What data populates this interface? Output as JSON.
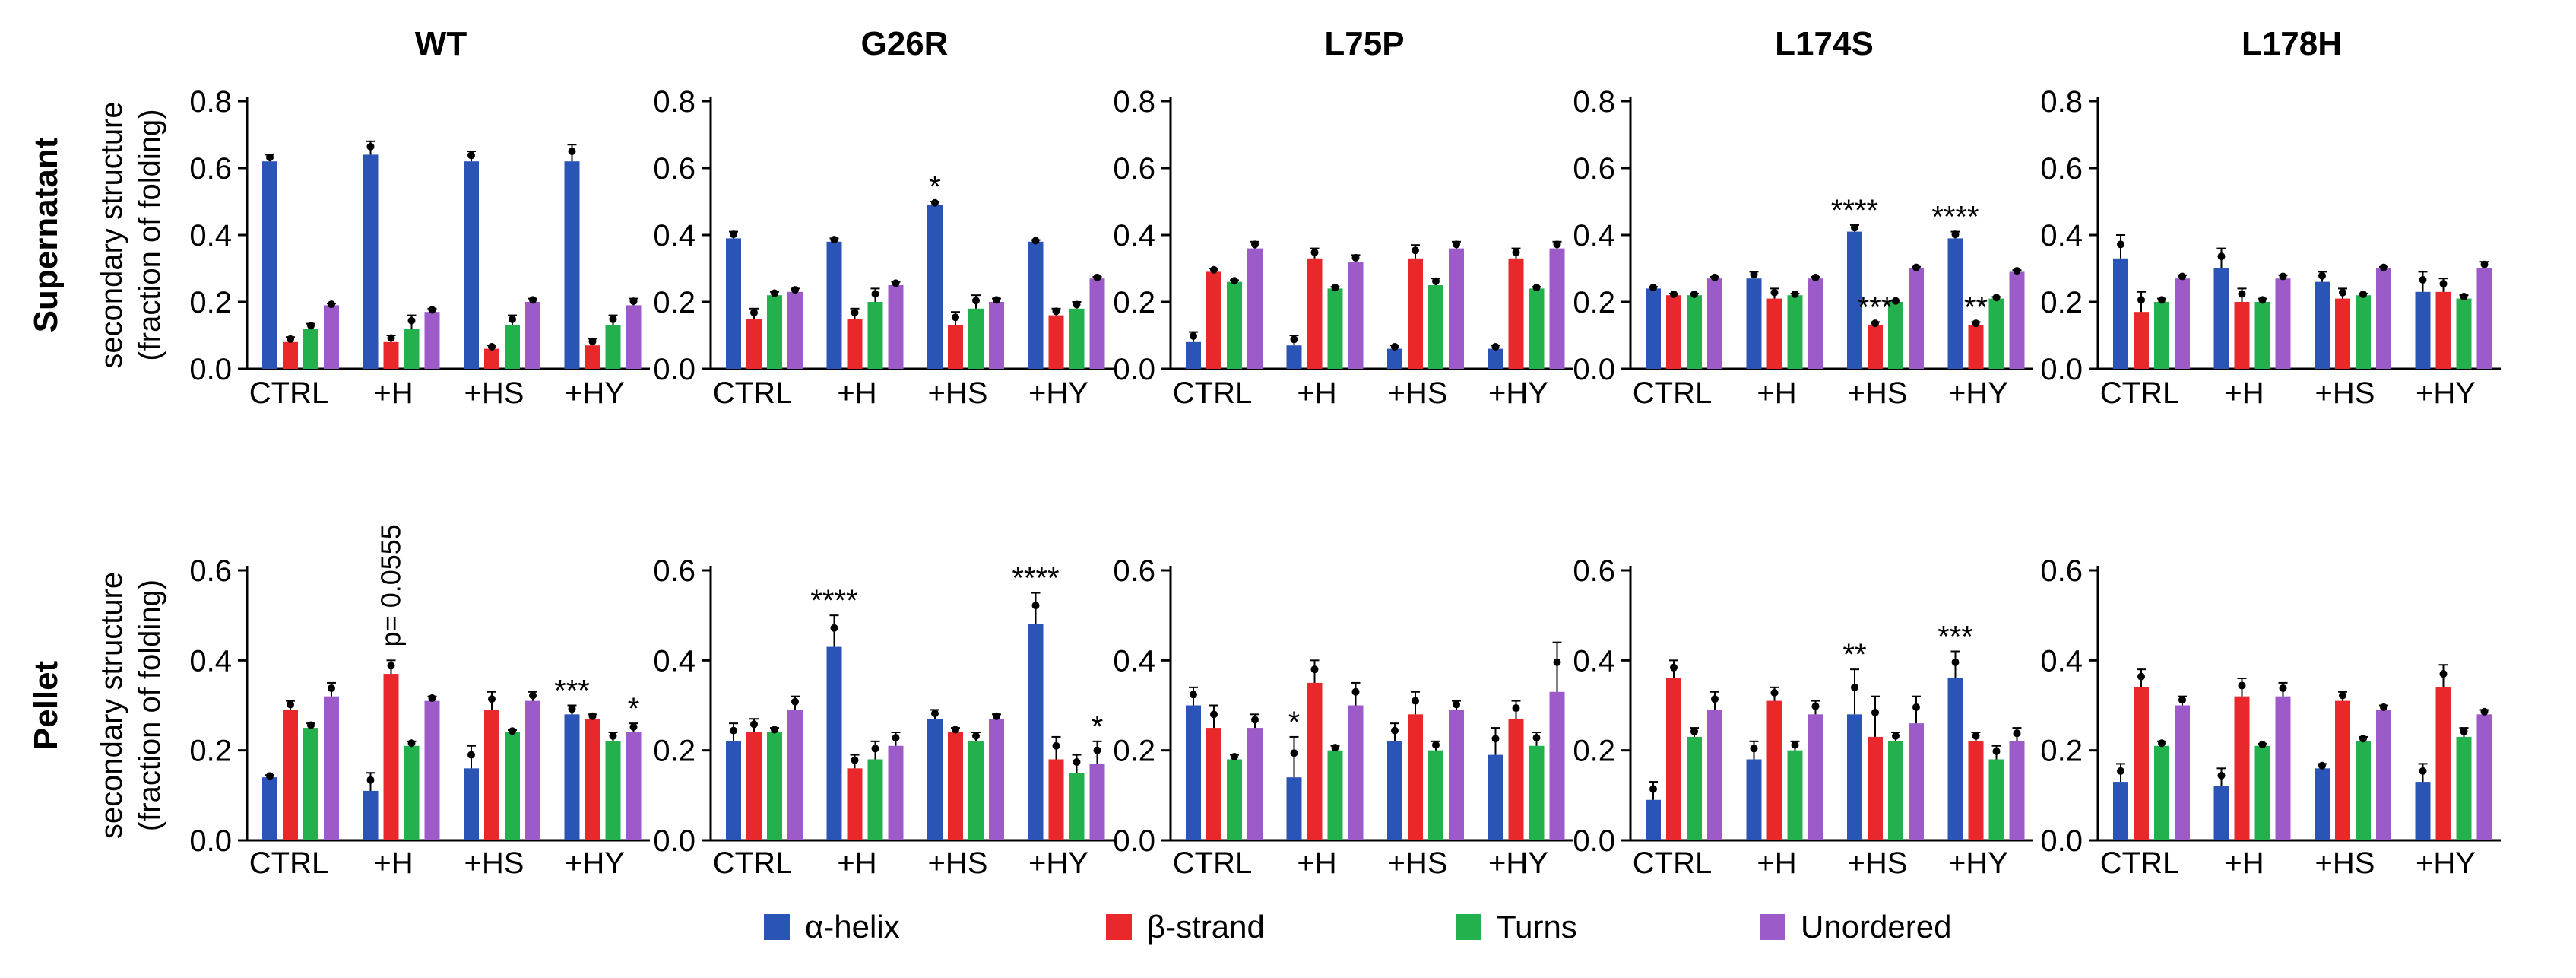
{
  "colors": {
    "alpha_helix": "#2a55b6",
    "beta_strand": "#e8282b",
    "turns": "#23b14d",
    "unordered": "#9c5bc8"
  },
  "row_labels": [
    "Supernatant",
    "Pellet"
  ],
  "legend": [
    {
      "label": "α-helix",
      "color": "#2a55b6"
    },
    {
      "label": "β-strand",
      "color": "#e8282b"
    },
    {
      "label": "Turns",
      "color": "#23b14d"
    },
    {
      "label": "Unordered",
      "color": "#9c5bc8"
    }
  ],
  "chart_data": [
    {
      "type": "bar",
      "title": "WT",
      "row": "Supernatant",
      "ylabel": "secondary structure\n(fraction of folding)",
      "categories": [
        "CTRL",
        "+H",
        "+HS",
        "+HY"
      ],
      "ylim": [
        0,
        0.8
      ],
      "yticks": [
        0.0,
        0.2,
        0.4,
        0.6,
        0.8
      ],
      "series": [
        {
          "name": "α-helix",
          "values": [
            0.62,
            0.64,
            0.62,
            0.62
          ],
          "errors": [
            0.02,
            0.04,
            0.03,
            0.05
          ]
        },
        {
          "name": "β-strand",
          "values": [
            0.08,
            0.08,
            0.06,
            0.07
          ],
          "errors": [
            0.015,
            0.02,
            0.01,
            0.02
          ]
        },
        {
          "name": "Turns",
          "values": [
            0.12,
            0.12,
            0.13,
            0.13
          ],
          "errors": [
            0.015,
            0.04,
            0.03,
            0.03
          ]
        },
        {
          "name": "Unordered",
          "values": [
            0.19,
            0.17,
            0.2,
            0.19
          ],
          "errors": [
            0.005,
            0.01,
            0.01,
            0.02
          ]
        }
      ],
      "annotations": []
    },
    {
      "type": "bar",
      "title": "G26R",
      "row": "Supernatant",
      "categories": [
        "CTRL",
        "+H",
        "+HS",
        "+HY"
      ],
      "ylim": [
        0,
        0.8
      ],
      "yticks": [
        0.0,
        0.2,
        0.4,
        0.6,
        0.8
      ],
      "series": [
        {
          "name": "α-helix",
          "values": [
            0.39,
            0.38,
            0.49,
            0.38
          ],
          "errors": [
            0.02,
            0.01,
            0.01,
            0.005
          ]
        },
        {
          "name": "β-strand",
          "values": [
            0.15,
            0.15,
            0.13,
            0.16
          ],
          "errors": [
            0.03,
            0.03,
            0.04,
            0.02
          ]
        },
        {
          "name": "Turns",
          "values": [
            0.22,
            0.2,
            0.18,
            0.18
          ],
          "errors": [
            0.01,
            0.04,
            0.04,
            0.02
          ]
        },
        {
          "name": "Unordered",
          "values": [
            0.23,
            0.25,
            0.2,
            0.27
          ],
          "errors": [
            0.01,
            0.01,
            0.01,
            0.005
          ]
        }
      ],
      "annotations": [
        {
          "group": 2,
          "series": 0,
          "text": "*"
        }
      ]
    },
    {
      "type": "bar",
      "title": "L75P",
      "row": "Supernatant",
      "categories": [
        "CTRL",
        "+H",
        "+HS",
        "+HY"
      ],
      "ylim": [
        0,
        0.8
      ],
      "yticks": [
        0.0,
        0.2,
        0.4,
        0.6,
        0.8
      ],
      "series": [
        {
          "name": "α-helix",
          "values": [
            0.08,
            0.07,
            0.06,
            0.06
          ],
          "errors": [
            0.03,
            0.03,
            0.01,
            0.01
          ]
        },
        {
          "name": "β-strand",
          "values": [
            0.29,
            0.33,
            0.33,
            0.33
          ],
          "errors": [
            0.01,
            0.03,
            0.04,
            0.03
          ]
        },
        {
          "name": "Turns",
          "values": [
            0.26,
            0.24,
            0.25,
            0.24
          ],
          "errors": [
            0.005,
            0.005,
            0.02,
            0.005
          ]
        },
        {
          "name": "Unordered",
          "values": [
            0.36,
            0.32,
            0.36,
            0.36
          ],
          "errors": [
            0.02,
            0.02,
            0.02,
            0.02
          ]
        }
      ],
      "annotations": []
    },
    {
      "type": "bar",
      "title": "L174S",
      "row": "Supernatant",
      "categories": [
        "CTRL",
        "+H",
        "+HS",
        "+HY"
      ],
      "ylim": [
        0,
        0.8
      ],
      "yticks": [
        0.0,
        0.2,
        0.4,
        0.6,
        0.8
      ],
      "series": [
        {
          "name": "α-helix",
          "values": [
            0.24,
            0.27,
            0.41,
            0.39
          ],
          "errors": [
            0.005,
            0.02,
            0.02,
            0.02
          ]
        },
        {
          "name": "β-strand",
          "values": [
            0.22,
            0.21,
            0.13,
            0.13
          ],
          "errors": [
            0.005,
            0.03,
            0.01,
            0.01
          ]
        },
        {
          "name": "Turns",
          "values": [
            0.22,
            0.22,
            0.2,
            0.21
          ],
          "errors": [
            0.005,
            0.005,
            0.005,
            0.005
          ]
        },
        {
          "name": "Unordered",
          "values": [
            0.27,
            0.27,
            0.3,
            0.29
          ],
          "errors": [
            0.005,
            0.005,
            0.005,
            0.005
          ]
        }
      ],
      "annotations": [
        {
          "group": 2,
          "series": 0,
          "text": "****"
        },
        {
          "group": 2,
          "series": 1,
          "text": "***"
        },
        {
          "group": 3,
          "series": 0,
          "text": "****"
        },
        {
          "group": 3,
          "series": 1,
          "text": "**"
        }
      ]
    },
    {
      "type": "bar",
      "title": "L178H",
      "row": "Supernatant",
      "categories": [
        "CTRL",
        "+H",
        "+HS",
        "+HY"
      ],
      "ylim": [
        0,
        0.8
      ],
      "yticks": [
        0.0,
        0.2,
        0.4,
        0.6,
        0.8
      ],
      "series": [
        {
          "name": "α-helix",
          "values": [
            0.33,
            0.3,
            0.26,
            0.23
          ],
          "errors": [
            0.07,
            0.06,
            0.03,
            0.06
          ]
        },
        {
          "name": "β-strand",
          "values": [
            0.17,
            0.2,
            0.21,
            0.23
          ],
          "errors": [
            0.06,
            0.04,
            0.03,
            0.04
          ]
        },
        {
          "name": "Turns",
          "values": [
            0.2,
            0.2,
            0.22,
            0.21
          ],
          "errors": [
            0.01,
            0.01,
            0.005,
            0.01
          ]
        },
        {
          "name": "Unordered",
          "values": [
            0.27,
            0.27,
            0.3,
            0.3
          ],
          "errors": [
            0.01,
            0.01,
            0.005,
            0.02
          ]
        }
      ],
      "annotations": []
    },
    {
      "type": "bar",
      "title": "",
      "row": "Pellet",
      "ylabel": "secondary structure\n(fraction of folding)",
      "categories": [
        "CTRL",
        "+H",
        "+HS",
        "+HY"
      ],
      "ylim": [
        0,
        0.6
      ],
      "yticks": [
        0.0,
        0.2,
        0.4,
        0.6
      ],
      "series": [
        {
          "name": "α-helix",
          "values": [
            0.14,
            0.11,
            0.16,
            0.28
          ],
          "errors": [
            0.005,
            0.04,
            0.05,
            0.02
          ]
        },
        {
          "name": "β-strand",
          "values": [
            0.29,
            0.37,
            0.29,
            0.27
          ],
          "errors": [
            0.02,
            0.03,
            0.04,
            0.01
          ]
        },
        {
          "name": "Turns",
          "values": [
            0.25,
            0.21,
            0.24,
            0.22
          ],
          "errors": [
            0.01,
            0.01,
            0.005,
            0.02
          ]
        },
        {
          "name": "Unordered",
          "values": [
            0.32,
            0.31,
            0.31,
            0.24
          ],
          "errors": [
            0.03,
            0.01,
            0.02,
            0.02
          ]
        }
      ],
      "annotations": [
        {
          "group": 1,
          "series": 1,
          "text": "p= 0.0555",
          "rotate": true
        },
        {
          "group": 3,
          "series": 0,
          "text": "***"
        },
        {
          "group": 3,
          "series": 3,
          "text": "*"
        }
      ]
    },
    {
      "type": "bar",
      "title": "",
      "row": "Pellet",
      "categories": [
        "CTRL",
        "+H",
        "+HS",
        "+HY"
      ],
      "ylim": [
        0,
        0.6
      ],
      "yticks": [
        0.0,
        0.2,
        0.4,
        0.6
      ],
      "series": [
        {
          "name": "α-helix",
          "values": [
            0.22,
            0.43,
            0.27,
            0.48
          ],
          "errors": [
            0.04,
            0.07,
            0.02,
            0.07
          ]
        },
        {
          "name": "β-strand",
          "values": [
            0.24,
            0.16,
            0.24,
            0.18
          ],
          "errors": [
            0.03,
            0.03,
            0.01,
            0.05
          ]
        },
        {
          "name": "Turns",
          "values": [
            0.24,
            0.18,
            0.22,
            0.15
          ],
          "errors": [
            0.01,
            0.04,
            0.02,
            0.04
          ]
        },
        {
          "name": "Unordered",
          "values": [
            0.29,
            0.21,
            0.27,
            0.17
          ],
          "errors": [
            0.03,
            0.03,
            0.01,
            0.05
          ]
        }
      ],
      "annotations": [
        {
          "group": 1,
          "series": 0,
          "text": "****"
        },
        {
          "group": 3,
          "series": 0,
          "text": "****"
        },
        {
          "group": 3,
          "series": 3,
          "text": "*"
        }
      ]
    },
    {
      "type": "bar",
      "title": "",
      "row": "Pellet",
      "categories": [
        "CTRL",
        "+H",
        "+HS",
        "+HY"
      ],
      "ylim": [
        0,
        0.6
      ],
      "yticks": [
        0.0,
        0.2,
        0.4,
        0.6
      ],
      "series": [
        {
          "name": "α-helix",
          "values": [
            0.3,
            0.14,
            0.22,
            0.19
          ],
          "errors": [
            0.04,
            0.09,
            0.04,
            0.06
          ]
        },
        {
          "name": "β-strand",
          "values": [
            0.25,
            0.35,
            0.28,
            0.27
          ],
          "errors": [
            0.05,
            0.05,
            0.05,
            0.04
          ]
        },
        {
          "name": "Turns",
          "values": [
            0.18,
            0.2,
            0.2,
            0.21
          ],
          "errors": [
            0.01,
            0.01,
            0.02,
            0.03
          ]
        },
        {
          "name": "Unordered",
          "values": [
            0.25,
            0.3,
            0.29,
            0.33
          ],
          "errors": [
            0.03,
            0.05,
            0.02,
            0.11
          ]
        }
      ],
      "annotations": [
        {
          "group": 1,
          "series": 0,
          "text": "*"
        }
      ]
    },
    {
      "type": "bar",
      "title": "",
      "row": "Pellet",
      "categories": [
        "CTRL",
        "+H",
        "+HS",
        "+HY"
      ],
      "ylim": [
        0,
        0.6
      ],
      "yticks": [
        0.0,
        0.2,
        0.4,
        0.6
      ],
      "series": [
        {
          "name": "α-helix",
          "values": [
            0.09,
            0.18,
            0.28,
            0.36
          ],
          "errors": [
            0.04,
            0.04,
            0.1,
            0.06
          ]
        },
        {
          "name": "β-strand",
          "values": [
            0.36,
            0.31,
            0.23,
            0.22
          ],
          "errors": [
            0.04,
            0.03,
            0.09,
            0.02
          ]
        },
        {
          "name": "Turns",
          "values": [
            0.23,
            0.2,
            0.22,
            0.18
          ],
          "errors": [
            0.02,
            0.02,
            0.02,
            0.03
          ]
        },
        {
          "name": "Unordered",
          "values": [
            0.29,
            0.28,
            0.26,
            0.22
          ],
          "errors": [
            0.04,
            0.03,
            0.06,
            0.03
          ]
        }
      ],
      "annotations": [
        {
          "group": 2,
          "series": 0,
          "text": "**"
        },
        {
          "group": 3,
          "series": 0,
          "text": "***"
        }
      ]
    },
    {
      "type": "bar",
      "title": "",
      "row": "Pellet",
      "categories": [
        "CTRL",
        "+H",
        "+HS",
        "+HY"
      ],
      "ylim": [
        0,
        0.6
      ],
      "yticks": [
        0.0,
        0.2,
        0.4,
        0.6
      ],
      "series": [
        {
          "name": "α-helix",
          "values": [
            0.13,
            0.12,
            0.16,
            0.13
          ],
          "errors": [
            0.04,
            0.04,
            0.01,
            0.04
          ]
        },
        {
          "name": "β-strand",
          "values": [
            0.34,
            0.32,
            0.31,
            0.34
          ],
          "errors": [
            0.04,
            0.04,
            0.02,
            0.05
          ]
        },
        {
          "name": "Turns",
          "values": [
            0.21,
            0.21,
            0.22,
            0.23
          ],
          "errors": [
            0.01,
            0.005,
            0.01,
            0.02
          ]
        },
        {
          "name": "Unordered",
          "values": [
            0.3,
            0.32,
            0.29,
            0.28
          ],
          "errors": [
            0.02,
            0.03,
            0.01,
            0.01
          ]
        }
      ],
      "annotations": []
    }
  ]
}
